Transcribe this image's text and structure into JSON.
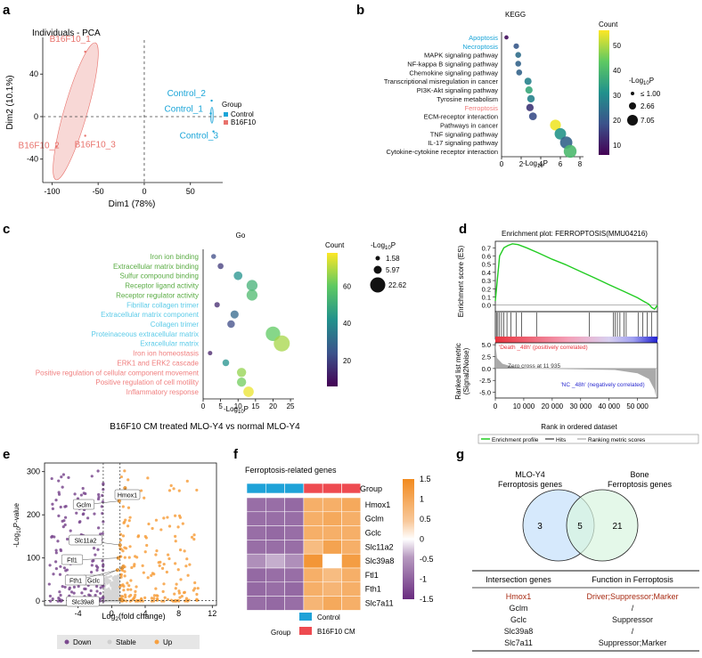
{
  "panels": {
    "a": {
      "label": "a",
      "chart_data": {
        "type": "scatter",
        "title": "Individuals - PCA",
        "xlabel": "Dim1 (78%)",
        "ylabel": "Dim2 (10.1%)",
        "xticks": [
          "-100",
          "-50",
          "0",
          "50"
        ],
        "yticks": [
          "40",
          "0",
          "-40"
        ],
        "xlim": [
          -110,
          85
        ],
        "ylim": [
          -62,
          72
        ],
        "legend_title": "Group",
        "groups": [
          {
            "name": "Control",
            "color": "#1aa5d8"
          },
          {
            "name": "B16F10",
            "color": "#e8726c"
          }
        ],
        "points": [
          {
            "label": "B16F10_1",
            "group": "B16F10",
            "x": -64,
            "y": 61
          },
          {
            "label": "B16F10_2",
            "group": "B16F10",
            "x": -95,
            "y": -28
          },
          {
            "label": "B16F10_3",
            "group": "B16F10",
            "x": -64,
            "y": -18
          },
          {
            "label": "Control_2",
            "group": "Control",
            "x": 73,
            "y": 15
          },
          {
            "label": "Control_1",
            "group": "Control",
            "x": 72,
            "y": 3
          },
          {
            "label": "Control_3",
            "group": "Control",
            "x": 75,
            "y": -14
          }
        ]
      }
    },
    "b": {
      "label": "b",
      "chart_data": {
        "type": "scatter",
        "title": "KEGG",
        "xlabel": "-Log10P",
        "xlabel_main": "-Log",
        "xlabel_sub": "10",
        "xlabel_tail": "P",
        "xticks": [
          "0",
          "2",
          "4",
          "6",
          "8"
        ],
        "xlim": [
          0,
          8
        ],
        "color_title": "Count",
        "color_ticks": [
          "50",
          "40",
          "30",
          "20",
          "10"
        ],
        "color_range": [
          6,
          56
        ],
        "size_title_main": "-Log",
        "size_title_sub": "10",
        "size_title_tail": "P",
        "size_legend": [
          "≤ 1.00",
          "2.66",
          "7.05"
        ],
        "terms": [
          {
            "name": "Apoptosis",
            "x": 0.5,
            "count": 8,
            "highlight": "blue"
          },
          {
            "name": "Necroptosis",
            "x": 1.5,
            "count": 20,
            "highlight": "blue"
          },
          {
            "name": "MAPK signaling pathway",
            "x": 1.7,
            "count": 24,
            "highlight": ""
          },
          {
            "name": "NF-kappa B signaling pathway",
            "x": 1.7,
            "count": 22,
            "highlight": ""
          },
          {
            "name": "Chemokine signaling pathway",
            "x": 1.8,
            "count": 22,
            "highlight": ""
          },
          {
            "name": "Transcriptional misregulation in cancer",
            "x": 2.7,
            "count": 28,
            "highlight": ""
          },
          {
            "name": "PI3K-Akt signaling pathway",
            "x": 2.8,
            "count": 36,
            "highlight": ""
          },
          {
            "name": "Tyrosine metabolism",
            "x": 3.0,
            "count": 28,
            "highlight": ""
          },
          {
            "name": "Ferroptosis",
            "x": 2.9,
            "count": 14,
            "highlight": "red"
          },
          {
            "name": "ECM-receptor interaction",
            "x": 3.2,
            "count": 18,
            "highlight": ""
          },
          {
            "name": "Pathways in cancer",
            "x": 5.5,
            "count": 55,
            "highlight": ""
          },
          {
            "name": "TNF signaling pathway",
            "x": 6.0,
            "count": 32,
            "highlight": ""
          },
          {
            "name": "IL-17 signaling pathway",
            "x": 6.6,
            "count": 22,
            "highlight": ""
          },
          {
            "name": "Cytokine-cytokine receptor interaction",
            "x": 7.0,
            "count": 40,
            "highlight": ""
          }
        ]
      }
    },
    "c": {
      "label": "c",
      "caption": "B16F10 CM treated MLO-Y4 vs normal MLO-Y4",
      "chart_data": {
        "type": "scatter",
        "title": "Go",
        "xlabel": "-Log10P",
        "xlabel_main": "-Log",
        "xlabel_sub": "10",
        "xlabel_tail": "P",
        "xticks": [
          "0",
          "5",
          "10",
          "15",
          "20",
          "25"
        ],
        "xlim": [
          0,
          26
        ],
        "color_title": "Count",
        "color_ticks": [
          "60",
          "40",
          "20"
        ],
        "color_range": [
          6,
          78
        ],
        "size_title_main": "-Log",
        "size_title_sub": "10",
        "size_title_tail": "P",
        "size_legend": [
          "1.58",
          "5.97",
          "22.62"
        ],
        "terms": [
          {
            "name": "Iron ion binding",
            "x": 3.0,
            "count": 22,
            "color": "#5aac44"
          },
          {
            "name": "Extracellular matrix binding",
            "x": 5.0,
            "count": 18,
            "color": "#5aac44"
          },
          {
            "name": "Sulfur compound binding",
            "x": 10.0,
            "count": 42,
            "color": "#5aac44"
          },
          {
            "name": "Receptor ligand activity",
            "x": 14.0,
            "count": 52,
            "color": "#5aac44"
          },
          {
            "name": "Receptor regulator activity",
            "x": 14.0,
            "count": 55,
            "color": "#5aac44"
          },
          {
            "name": "Fibrillar collagen trimer",
            "x": 4.0,
            "count": 14,
            "color": "#5ccbe8"
          },
          {
            "name": "Extracellular matrix component",
            "x": 9.0,
            "count": 30,
            "color": "#5ccbe8"
          },
          {
            "name": "Collagen trimer",
            "x": 8.0,
            "count": 22,
            "color": "#5ccbe8"
          },
          {
            "name": "Proteinaceous extracellular matrix",
            "x": 20.0,
            "count": 60,
            "color": "#5ccbe8"
          },
          {
            "name": "Exracellular matrix",
            "x": 22.5,
            "count": 68,
            "color": "#5ccbe8"
          },
          {
            "name": "Iron ion homeostasis",
            "x": 2.0,
            "count": 12,
            "color": "#f08080"
          },
          {
            "name": "ERK1 and ERK2 cascade",
            "x": 6.5,
            "count": 42,
            "color": "#f08080"
          },
          {
            "name": "Positive regulation of cellular component movement",
            "x": 11.0,
            "count": 66,
            "color": "#f08080"
          },
          {
            "name": "Positive regulation of cell motility",
            "x": 11.0,
            "count": 62,
            "color": "#f08080"
          },
          {
            "name": "Inflammatory response",
            "x": 13.0,
            "count": 76,
            "color": "#f08080"
          }
        ]
      }
    },
    "d": {
      "label": "d",
      "chart_data": {
        "type": "line",
        "title": "Enrichment plot: FERROPTOSIS(MMU04216)",
        "ylabel_top": "Enrichment score (ES)",
        "ylabel_bottom_1": "Ranked list metric",
        "ylabel_bottom_2": "(Signal2Noise)",
        "xlabel": "Rank in ordered dataset",
        "yticks_top": [
          "0.7",
          "0.6",
          "0.5",
          "0.4",
          "0.3",
          "0.2",
          "0.1",
          "0.0"
        ],
        "yticks_bottom": [
          "5.0",
          "2.5",
          "0.0",
          "-2.5",
          "-5.0"
        ],
        "xticks": [
          "0",
          "10 000",
          "20 000",
          "30 000",
          "40 000",
          "50 000"
        ],
        "x_max": 57000,
        "es_curve": {
          "x": [
            0,
            1500,
            3000,
            4500,
            6000,
            8000,
            11000,
            15000,
            20000,
            25000,
            30000,
            35000,
            40000,
            45000,
            50000,
            52000,
            54000,
            55000,
            56000,
            57000
          ],
          "y": [
            0.05,
            0.6,
            0.7,
            0.73,
            0.75,
            0.74,
            0.7,
            0.64,
            0.56,
            0.49,
            0.41,
            0.33,
            0.25,
            0.17,
            0.09,
            0.05,
            0.01,
            -0.03,
            -0.05,
            0.0
          ]
        },
        "hit_ranks": [
          400,
          900,
          1500,
          2200,
          3000,
          4100,
          5500,
          7300,
          9200,
          14500,
          33000,
          41500,
          42100,
          42900,
          43800,
          45200,
          46000,
          50200,
          51800,
          53400,
          54900
        ],
        "pos_label": "'Death _48h' (positively correlated)",
        "zero_cross": "Zero cross at 11 935",
        "neg_label": "'NC _48h' (negatively correlated)",
        "legend": [
          "Enrichment profile",
          "Hits",
          "Ranking metric scores"
        ],
        "colors": {
          "profile": "#22cc22",
          "pos": "#e8323c",
          "neg": "#2b2bd0"
        }
      }
    },
    "e": {
      "label": "e",
      "chart_data": {
        "type": "scatter",
        "xlabel_main": "Log",
        "xlabel_sub": "2",
        "xlabel_tail": "(fold change)",
        "ylabel_main": "-Log",
        "ylabel_sub": "10",
        "ylabel_tail": "P-value",
        "xticks": [
          "-4",
          "0",
          "4",
          "8",
          "12"
        ],
        "yticks": [
          "300",
          "200",
          "100",
          "0"
        ],
        "xlim": [
          -8,
          12.5
        ],
        "ylim": [
          -10,
          320
        ],
        "legend": [
          {
            "name": "Down",
            "color": "#7b4a8f"
          },
          {
            "name": "Stable",
            "color": "#d6d6d6"
          },
          {
            "name": "Up",
            "color": "#f7a040"
          }
        ],
        "labeled_genes": [
          {
            "gene": "Hmox1",
            "x": 1.6,
            "y": 262
          },
          {
            "gene": "Gclm",
            "x": 0.9,
            "y": 232
          },
          {
            "gene": "Slc11a2",
            "x": 1.0,
            "y": 130
          },
          {
            "gene": "Ftl1",
            "x": 0.8,
            "y": 100
          },
          {
            "gene": "Gclc",
            "x": 1.3,
            "y": 78
          },
          {
            "gene": "Fth1",
            "x": 0.7,
            "y": 72
          },
          {
            "gene": "Slc39a8",
            "x": 1.2,
            "y": 2
          }
        ]
      }
    },
    "f": {
      "label": "f",
      "title": "Ferroptosis-related genes",
      "chart_data": {
        "type": "heatmap",
        "title": "Ferroptosis-related genes",
        "annotation_label": "Group",
        "rows": [
          "Hmox1",
          "Gclm",
          "Gclc",
          "Slc11a2",
          "Slc39a8",
          "Ftl1",
          "Fth1",
          "Slc7a11"
        ],
        "column_groups": [
          "Control",
          "Control",
          "Control",
          "B16F10 CM",
          "B16F10 CM",
          "B16F10 CM"
        ],
        "values": [
          [
            -0.9,
            -0.9,
            -0.95,
            0.9,
            0.9,
            1.0
          ],
          [
            -0.9,
            -0.9,
            -0.9,
            0.9,
            1.0,
            0.9
          ],
          [
            -0.9,
            -0.95,
            -0.9,
            0.9,
            0.9,
            0.9
          ],
          [
            -0.9,
            -0.9,
            -0.9,
            0.7,
            1.1,
            0.9
          ],
          [
            -0.6,
            -0.4,
            -0.6,
            1.3,
            0.0,
            1.2
          ],
          [
            -0.95,
            -0.9,
            -0.9,
            0.9,
            0.7,
            0.9
          ],
          [
            -0.95,
            -0.9,
            -0.95,
            0.9,
            0.8,
            0.9
          ],
          [
            -0.9,
            -0.95,
            -0.9,
            0.8,
            1.0,
            0.9
          ]
        ],
        "scale_ticks": [
          "1.5",
          "1",
          "0.5",
          "0",
          "-0.5",
          "-1",
          "-1.5"
        ],
        "legend_title": "Group",
        "legend": [
          {
            "name": "Control",
            "color": "#1ea2d8"
          },
          {
            "name": "B16F10 CM",
            "color": "#ee4a50"
          }
        ]
      }
    },
    "g": {
      "label": "g",
      "venn": {
        "left_title_1": "MLO-Y4",
        "left_title_2": "Ferroptosis genes",
        "right_title_1": "Bone",
        "right_title_2": "Ferroptosis genes",
        "left_only": "3",
        "both": "5",
        "right_only": "21"
      },
      "table": {
        "headers": [
          "Intersection genes",
          "Function in Ferroptosis"
        ],
        "rows": [
          {
            "gene": "Hmox1",
            "function": "Driver;Suppressor;Marker",
            "highlight": true
          },
          {
            "gene": "Gclm",
            "function": "/",
            "highlight": false
          },
          {
            "gene": "Gclc",
            "function": "Suppressor",
            "highlight": false
          },
          {
            "gene": "Slc39a8",
            "function": "/",
            "highlight": false
          },
          {
            "gene": "Slc7a11",
            "function": "Suppressor;Marker",
            "highlight": false
          }
        ]
      }
    }
  }
}
